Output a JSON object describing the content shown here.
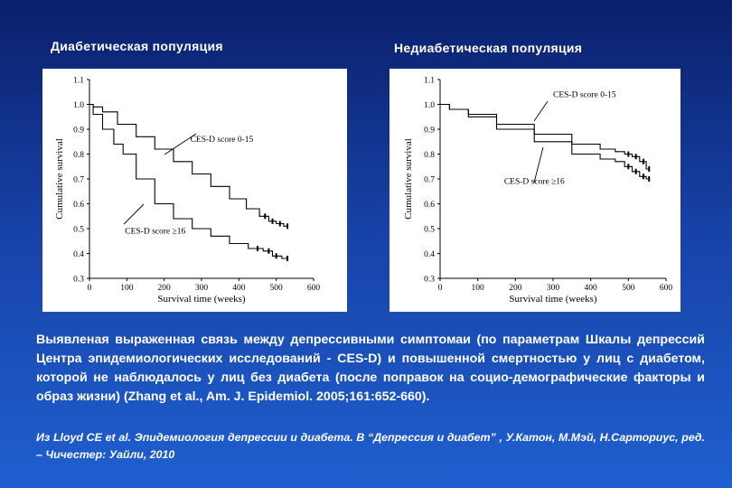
{
  "slide": {
    "body_text": "Выявленая выраженная связь между депрессивными симптомаи (по параметрам Шкалы депрессий Центра эпидемиологических исследований - CES-D) и повышенной смертностью у лиц с диабетом, которой не наблюдалось у лиц без диабета (после поправок на социо-демографические факторы и образ жизни) (Zhang et al., Am. J. Epidemiol. 2005;161:652-660).",
    "citation": "Из Lloyd CE et al. Эпидемиология депрессии и диабета. В “Депрессия и диабет” , У.Катон, М.Мэй, Н.Сарториус, ред. – Чичестер: Уайли, 2010"
  },
  "colors": {
    "background_top": "#0b1f6b",
    "background_bottom": "#1f5fcf",
    "text": "#ffffff",
    "plot": "#000000"
  },
  "chart_data": [
    {
      "type": "line",
      "title": "Диабетическая популяция",
      "xlabel": "Survival time (weeks)",
      "ylabel": "Cumulative survival",
      "xlim": [
        0,
        600
      ],
      "ylim": [
        0.3,
        1.1
      ],
      "xticks": [
        "0",
        "100",
        "200",
        "300",
        "400",
        "500",
        "600"
      ],
      "yticks": [
        "0.3",
        "0.4",
        "0.5",
        "0.6",
        "0.7",
        "0.8",
        "0.9",
        "1.0",
        "1.1"
      ],
      "grid": false,
      "series": [
        {
          "name": "CES-D score 0-15",
          "x": [
            0,
            20,
            50,
            100,
            150,
            200,
            250,
            300,
            350,
            400,
            440,
            470,
            490,
            510,
            530
          ],
          "y": [
            1.0,
            0.99,
            0.97,
            0.92,
            0.87,
            0.82,
            0.77,
            0.72,
            0.67,
            0.62,
            0.58,
            0.55,
            0.53,
            0.52,
            0.51
          ]
        },
        {
          "name": "CES-D score ≥16",
          "x": [
            0,
            20,
            50,
            80,
            100,
            150,
            200,
            250,
            300,
            350,
            400,
            450,
            480,
            500,
            530
          ],
          "y": [
            1.0,
            0.96,
            0.9,
            0.84,
            0.8,
            0.7,
            0.6,
            0.54,
            0.5,
            0.47,
            0.44,
            0.42,
            0.41,
            0.39,
            0.38
          ]
        }
      ],
      "annotations": [
        {
          "text": "CES-D score 0-15",
          "x": 270,
          "y": 0.85
        },
        {
          "text": "CES-D score ≥16",
          "x": 95,
          "y": 0.48
        }
      ]
    },
    {
      "type": "line",
      "title": "Недиабетическая популяция",
      "xlabel": "Survival time (weeks)",
      "ylabel": "Cumulative survival",
      "xlim": [
        0,
        600
      ],
      "ylim": [
        0.3,
        1.1
      ],
      "xticks": [
        "0",
        "100",
        "200",
        "300",
        "400",
        "500",
        "600"
      ],
      "yticks": [
        "0.3",
        "0.4",
        "0.5",
        "0.6",
        "0.7",
        "0.8",
        "0.9",
        "1.0",
        "1.1"
      ],
      "grid": false,
      "series": [
        {
          "name": "CES-D score 0-15",
          "x": [
            0,
            50,
            100,
            200,
            300,
            400,
            450,
            480,
            500,
            520,
            540,
            555
          ],
          "y": [
            1.0,
            0.98,
            0.96,
            0.92,
            0.88,
            0.84,
            0.82,
            0.81,
            0.8,
            0.79,
            0.77,
            0.74
          ]
        },
        {
          "name": "CES-D score ≥16",
          "x": [
            0,
            50,
            100,
            200,
            300,
            400,
            450,
            480,
            500,
            520,
            540,
            555
          ],
          "y": [
            1.0,
            0.98,
            0.95,
            0.9,
            0.85,
            0.8,
            0.78,
            0.77,
            0.75,
            0.73,
            0.71,
            0.7
          ]
        }
      ],
      "annotations": [
        {
          "text": "CES-D score 0-15",
          "x": 300,
          "y": 1.03
        },
        {
          "text": "CES-D score ≥16",
          "x": 170,
          "y": 0.68
        }
      ]
    }
  ]
}
